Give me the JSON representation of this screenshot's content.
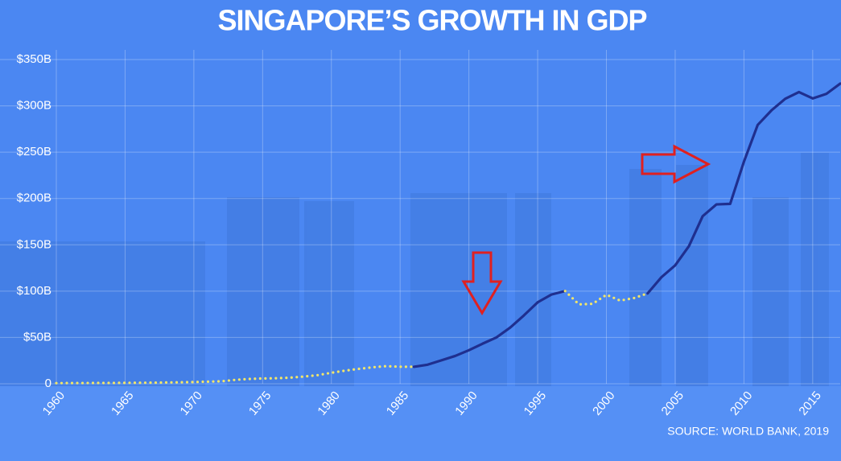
{
  "chart_data": {
    "type": "line",
    "title": "SINGAPORE’S GROWTH IN GDP",
    "source": "SOURCE: WORLD BANK, 2019",
    "x": [
      1960,
      1961,
      1962,
      1963,
      1964,
      1965,
      1966,
      1967,
      1968,
      1969,
      1970,
      1971,
      1972,
      1973,
      1974,
      1975,
      1976,
      1977,
      1978,
      1979,
      1980,
      1981,
      1982,
      1983,
      1984,
      1985,
      1986,
      1987,
      1988,
      1989,
      1990,
      1991,
      1992,
      1993,
      1994,
      1995,
      1996,
      1997,
      1998,
      1999,
      2000,
      2001,
      2002,
      2003,
      2004,
      2005,
      2006,
      2007,
      2008,
      2009,
      2010,
      2011,
      2012,
      2013,
      2014,
      2015,
      2016,
      2017
    ],
    "values": [
      0.7,
      0.76,
      0.8,
      0.9,
      0.9,
      1.0,
      1.1,
      1.2,
      1.4,
      1.6,
      1.9,
      2.3,
      2.7,
      4.2,
      5.2,
      5.7,
      6.0,
      6.6,
      7.8,
      9.3,
      11.9,
      14.2,
      16.1,
      17.8,
      19.0,
      18.4,
      18.3,
      20.6,
      25.3,
      30.0,
      36.2,
      43.3,
      50.0,
      60.6,
      73.8,
      87.9,
      96.3,
      100.1,
      85.7,
      86.3,
      96.1,
      89.8,
      92.5,
      97.6,
      115,
      127.8,
      148.6,
      180.9,
      193.6,
      194.2,
      239.8,
      279.4,
      295.1,
      307.6,
      314.9,
      308,
      313,
      324
    ],
    "segments": [
      {
        "style": "dotted",
        "color": "#f2e66a",
        "start": 1960,
        "end": 1986
      },
      {
        "style": "solid",
        "color": "#1f2f8f",
        "start": 1986,
        "end": 1997
      },
      {
        "style": "dotted",
        "color": "#f2e66a",
        "start": 1997,
        "end": 2003
      },
      {
        "style": "solid",
        "color": "#1f2f8f",
        "start": 2003,
        "end": 2017
      }
    ],
    "xlim": [
      1960,
      2017
    ],
    "ylim": [
      0,
      350
    ],
    "xticks": [
      1960,
      1965,
      1970,
      1975,
      1980,
      1985,
      1990,
      1995,
      2000,
      2005,
      2010,
      2015
    ],
    "yticks": [
      0,
      {
        "value": 50,
        "label": "$50B"
      },
      {
        "value": 100,
        "label": "$100B"
      },
      {
        "value": 150,
        "label": "$150B"
      },
      {
        "value": 200,
        "label": "$200B"
      },
      {
        "value": 250,
        "label": "$250B"
      },
      {
        "value": 300,
        "label": "$300B"
      },
      {
        "value": 350,
        "label": "$350B"
      }
    ],
    "grid": true
  }
}
